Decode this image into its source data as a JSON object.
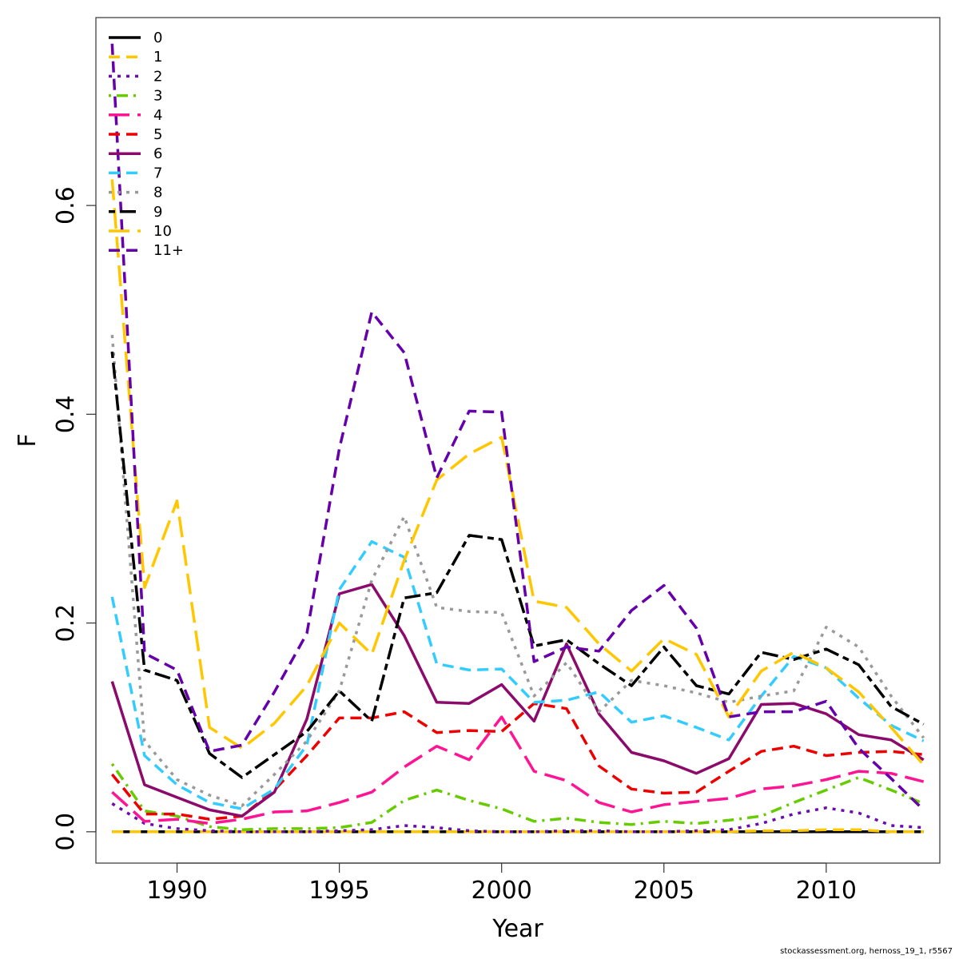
{
  "chart_data": {
    "type": "line",
    "title": "",
    "xlabel": "Year",
    "ylabel": "F",
    "xlim": [
      1987.5,
      2013.5
    ],
    "ylim": [
      -0.03,
      0.78
    ],
    "x_ticks": [
      "1990",
      "1995",
      "2000",
      "2005",
      "2010"
    ],
    "y_ticks": [
      "0.0",
      "0.2",
      "0.4",
      "0.6"
    ],
    "x": [
      1988,
      1989,
      1990,
      1991,
      1992,
      1993,
      1994,
      1995,
      1996,
      1997,
      1998,
      1999,
      2000,
      2001,
      2002,
      2003,
      2004,
      2005,
      2006,
      2007,
      2008,
      2009,
      2010,
      2011,
      2012,
      2013
    ],
    "legend_position": "top-left",
    "grid": false,
    "series": [
      {
        "name": "0",
        "color": "#000000",
        "dash": "solid",
        "values": [
          0,
          0,
          0,
          0,
          0,
          0,
          0,
          0,
          0,
          0,
          0,
          0,
          0,
          0,
          0,
          0,
          0,
          0,
          0,
          0,
          0,
          0,
          0,
          0,
          0,
          0
        ]
      },
      {
        "name": "1",
        "color": "#FFC700",
        "dash": "dashed",
        "values": [
          0,
          0,
          0,
          0,
          0,
          0,
          0,
          0,
          0,
          0,
          0,
          0,
          0,
          0,
          0,
          0,
          0,
          0,
          0,
          0,
          0.001,
          0.001,
          0.002,
          0.002,
          0,
          0
        ]
      },
      {
        "name": "2",
        "color": "#6A0DAD",
        "dash": "dotted",
        "values": [
          0.027,
          0.008,
          0.003,
          0.001,
          0,
          0,
          0,
          0.001,
          0.002,
          0.006,
          0.004,
          0.001,
          0,
          0,
          0.001,
          0.001,
          0,
          0,
          0.001,
          0.002,
          0.008,
          0.017,
          0.023,
          0.018,
          0.006,
          0.004
        ]
      },
      {
        "name": "3",
        "color": "#66CC00",
        "dash": "dotdash",
        "values": [
          0.065,
          0.02,
          0.015,
          0.005,
          0.002,
          0.003,
          0.003,
          0.004,
          0.009,
          0.03,
          0.04,
          0.03,
          0.022,
          0.01,
          0.013,
          0.009,
          0.007,
          0.01,
          0.008,
          0.011,
          0.015,
          0.028,
          0.04,
          0.052,
          0.04,
          0.027
        ]
      },
      {
        "name": "4",
        "color": "#FF1493",
        "dash": "longdash",
        "values": [
          0.038,
          0.01,
          0.012,
          0.008,
          0.012,
          0.019,
          0.02,
          0.028,
          0.038,
          0.062,
          0.082,
          0.069,
          0.11,
          0.058,
          0.049,
          0.028,
          0.019,
          0.026,
          0.029,
          0.032,
          0.041,
          0.044,
          0.05,
          0.058,
          0.056,
          0.048
        ]
      },
      {
        "name": "5",
        "color": "#EE0000",
        "dash": "dashed",
        "values": [
          0.055,
          0.017,
          0.017,
          0.012,
          0.015,
          0.04,
          0.073,
          0.109,
          0.109,
          0.115,
          0.095,
          0.097,
          0.096,
          0.123,
          0.118,
          0.063,
          0.041,
          0.037,
          0.038,
          0.058,
          0.077,
          0.082,
          0.073,
          0.076,
          0.077,
          0.074
        ]
      },
      {
        "name": "6",
        "color": "#8B0A6B",
        "dash": "solid",
        "values": [
          0.144,
          0.045,
          0.033,
          0.021,
          0.015,
          0.038,
          0.108,
          0.228,
          0.237,
          0.188,
          0.124,
          0.123,
          0.141,
          0.106,
          0.18,
          0.113,
          0.076,
          0.068,
          0.056,
          0.07,
          0.122,
          0.123,
          0.113,
          0.093,
          0.088,
          0.069
        ]
      },
      {
        "name": "7",
        "color": "#33CCFF",
        "dash": "dashed",
        "values": [
          0.225,
          0.073,
          0.045,
          0.028,
          0.022,
          0.041,
          0.083,
          0.232,
          0.278,
          0.263,
          0.161,
          0.155,
          0.156,
          0.124,
          0.126,
          0.134,
          0.105,
          0.111,
          0.1,
          0.088,
          0.13,
          0.168,
          0.157,
          0.128,
          0.102,
          0.087
        ]
      },
      {
        "name": "8",
        "color": "#999999",
        "dash": "dotted",
        "values": [
          0.476,
          0.087,
          0.05,
          0.035,
          0.025,
          0.055,
          0.087,
          0.135,
          0.241,
          0.302,
          0.215,
          0.211,
          0.21,
          0.13,
          0.162,
          0.115,
          0.145,
          0.14,
          0.133,
          0.124,
          0.13,
          0.135,
          0.196,
          0.177,
          0.13,
          0.09
        ]
      },
      {
        "name": "9",
        "color": "#000000",
        "dash": "twodash",
        "values": [
          0.46,
          0.155,
          0.145,
          0.075,
          0.052,
          0.074,
          0.096,
          0.135,
          0.106,
          0.224,
          0.229,
          0.284,
          0.28,
          0.178,
          0.184,
          0.161,
          0.14,
          0.177,
          0.14,
          0.132,
          0.172,
          0.165,
          0.175,
          0.16,
          0.12,
          0.103
        ]
      },
      {
        "name": "10",
        "color": "#FFC700",
        "dash": "longdash",
        "values": [
          0.625,
          0.234,
          0.317,
          0.1,
          0.08,
          0.104,
          0.14,
          0.2,
          0.17,
          0.26,
          0.337,
          0.362,
          0.378,
          0.221,
          0.215,
          0.18,
          0.154,
          0.185,
          0.17,
          0.11,
          0.154,
          0.172,
          0.157,
          0.134,
          0.1,
          0.064
        ]
      },
      {
        "name": "11+",
        "color": "#6600AA",
        "dash": "dashed",
        "values": [
          0.755,
          0.171,
          0.155,
          0.077,
          0.083,
          0.134,
          0.19,
          0.367,
          0.498,
          0.459,
          0.339,
          0.403,
          0.402,
          0.163,
          0.177,
          0.173,
          0.212,
          0.236,
          0.195,
          0.11,
          0.115,
          0.115,
          0.125,
          0.08,
          0.051,
          0.021
        ]
      }
    ]
  },
  "footer": {
    "credit": "stockassessment.org, hernoss_19_1, r5567"
  }
}
